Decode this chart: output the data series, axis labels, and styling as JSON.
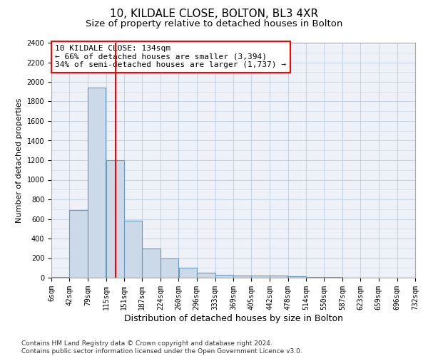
{
  "title": "10, KILDALE CLOSE, BOLTON, BL3 4XR",
  "subtitle": "Size of property relative to detached houses in Bolton",
  "xlabel": "Distribution of detached houses by size in Bolton",
  "ylabel": "Number of detached properties",
  "bar_color": "#ccd9e8",
  "bar_edge_color": "#6699bb",
  "grid_color": "#c8d4e4",
  "background_color": "#eef2f8",
  "property_line_x": 134,
  "property_line_color": "red",
  "annotation_text": "10 KILDALE CLOSE: 134sqm\n← 66% of detached houses are smaller (3,394)\n34% of semi-detached houses are larger (1,737) →",
  "annotation_box_color": "white",
  "annotation_box_edge_color": "red",
  "footer_text": "Contains HM Land Registry data © Crown copyright and database right 2024.\nContains public sector information licensed under the Open Government Licence v3.0.",
  "bins": [
    6,
    42,
    79,
    115,
    151,
    187,
    224,
    260,
    296,
    333,
    369,
    405,
    442,
    478,
    514,
    550,
    587,
    623,
    659,
    696,
    732
  ],
  "counts": [
    5,
    690,
    1940,
    1200,
    580,
    300,
    200,
    100,
    50,
    30,
    25,
    20,
    20,
    15,
    10,
    5,
    3,
    2,
    1,
    1
  ],
  "ylim": [
    0,
    2400
  ],
  "yticks": [
    0,
    200,
    400,
    600,
    800,
    1000,
    1200,
    1400,
    1600,
    1800,
    2000,
    2200,
    2400
  ],
  "title_fontsize": 11,
  "subtitle_fontsize": 9.5,
  "xlabel_fontsize": 9,
  "ylabel_fontsize": 8,
  "tick_fontsize": 7,
  "annotation_fontsize": 8,
  "footer_fontsize": 6.5
}
